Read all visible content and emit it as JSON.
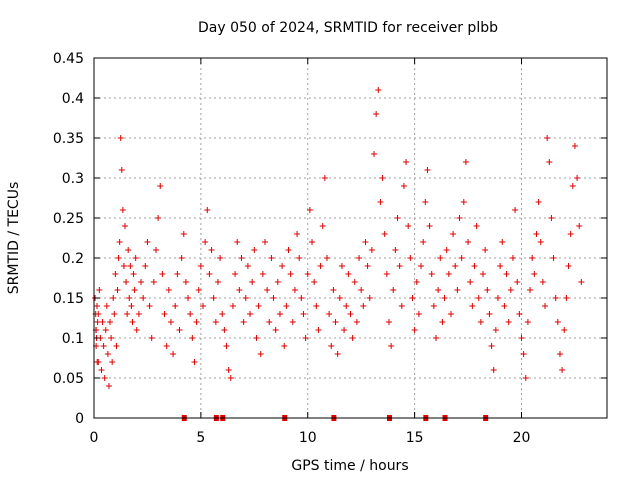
{
  "chart_data": {
    "type": "scatter",
    "title": "Day 050 of 2024, SRMTID for receiver plbb",
    "xlabel": "GPS time / hours",
    "ylabel": "SRMTID / TECUs",
    "xlim": [
      0,
      24
    ],
    "ylim": [
      0,
      0.45
    ],
    "x_ticks": [
      0,
      5,
      10,
      15,
      20
    ],
    "y_ticks": [
      0,
      0.05,
      0.1,
      0.15,
      0.2,
      0.25,
      0.3,
      0.35,
      0.4,
      0.45
    ],
    "x_tick_labels": [
      "0",
      "5",
      "10",
      "15",
      "20"
    ],
    "y_tick_labels": [
      "0",
      "0.05",
      "0.1",
      "0.15",
      "0.2",
      "0.25",
      "0.3",
      "0.35",
      "0.4",
      "0.45"
    ],
    "grid": true,
    "marker": "+",
    "color": "#dd0000",
    "series": [
      {
        "name": "SRMTID",
        "x": [
          0.05,
          0.1,
          0.15,
          0.2,
          0.25,
          0.3,
          0.35,
          0.4,
          0.45,
          0.5,
          0.55,
          0.6,
          0.65,
          0.7,
          0.75,
          0.8,
          0.85,
          0.9,
          0.95,
          1.0,
          1.05,
          1.1,
          1.15,
          1.2,
          1.25,
          1.3,
          1.35,
          1.4,
          1.45,
          1.5,
          1.55,
          1.6,
          1.65,
          1.7,
          1.75,
          1.8,
          1.85,
          1.9,
          1.95,
          2.0,
          2.1,
          2.2,
          2.3,
          2.4,
          2.5,
          2.6,
          2.7,
          2.8,
          2.9,
          3.0,
          3.1,
          3.2,
          3.3,
          3.4,
          3.5,
          3.6,
          3.7,
          3.8,
          3.9,
          4.0,
          4.1,
          4.2,
          4.3,
          4.4,
          4.5,
          4.6,
          4.7,
          4.8,
          4.9,
          5.0,
          5.1,
          5.2,
          5.3,
          5.4,
          5.5,
          5.6,
          5.7,
          5.8,
          5.9,
          6.0,
          6.1,
          6.2,
          6.3,
          6.4,
          6.5,
          6.6,
          6.7,
          6.8,
          6.9,
          7.0,
          7.1,
          7.2,
          7.3,
          7.4,
          7.5,
          7.6,
          7.7,
          7.8,
          7.9,
          8.0,
          8.1,
          8.2,
          8.3,
          8.4,
          8.5,
          8.6,
          8.7,
          8.8,
          8.9,
          9.0,
          9.1,
          9.2,
          9.3,
          9.4,
          9.5,
          9.6,
          9.7,
          9.8,
          9.9,
          10.0,
          10.1,
          10.2,
          10.3,
          10.4,
          10.5,
          10.6,
          10.7,
          10.8,
          10.9,
          11.0,
          11.1,
          11.2,
          11.3,
          11.4,
          11.5,
          11.6,
          11.7,
          11.8,
          11.9,
          12.0,
          12.1,
          12.2,
          12.3,
          12.4,
          12.5,
          12.6,
          12.7,
          12.8,
          12.9,
          13.0,
          13.1,
          13.2,
          13.3,
          13.4,
          13.5,
          13.6,
          13.7,
          13.8,
          13.9,
          14.0,
          14.1,
          14.2,
          14.3,
          14.4,
          14.5,
          14.6,
          14.7,
          14.8,
          14.9,
          15.0,
          15.1,
          15.2,
          15.3,
          15.4,
          15.5,
          15.6,
          15.7,
          15.8,
          15.9,
          16.0,
          16.1,
          16.2,
          16.3,
          16.4,
          16.5,
          16.6,
          16.7,
          16.8,
          16.9,
          17.0,
          17.1,
          17.2,
          17.3,
          17.4,
          17.5,
          17.6,
          17.7,
          17.8,
          17.9,
          18.0,
          18.1,
          18.2,
          18.3,
          18.4,
          18.5,
          18.6,
          18.7,
          18.8,
          18.9,
          19.0,
          19.1,
          19.2,
          19.3,
          19.4,
          19.5,
          19.6,
          19.7,
          19.8,
          19.9,
          20.0,
          20.1,
          20.2,
          20.3,
          20.4,
          20.5,
          20.6,
          20.7,
          20.8,
          20.9,
          21.0,
          21.1,
          21.2,
          21.3,
          21.4,
          21.5,
          21.6,
          21.7,
          21.8,
          21.9,
          22.0,
          22.1,
          22.2,
          22.3,
          22.4,
          22.5,
          22.6,
          22.7,
          22.8,
          0.08,
          0.12,
          0.2,
          0.1,
          0.17,
          0.14,
          0.09,
          0.15,
          0.11,
          0.07,
          0.13,
          0.16,
          0.1,
          0.06,
          0.12,
          0.09,
          0.05,
          0.11,
          0.14,
          0.08,
          0.04,
          0.12,
          0.1,
          0.07,
          0.15,
          0.13,
          0.18,
          0.09,
          0.16,
          0.2,
          0.22,
          0.35,
          0.31,
          0.26,
          0.19,
          0.24,
          0.17,
          0.13,
          0.21,
          0.15,
          0.19,
          0.14,
          0.12,
          0.18,
          0.16,
          0.2,
          0.11,
          0.13,
          0.17,
          0.15,
          0.19,
          0.22,
          0.14,
          0.1,
          0.17,
          0.21,
          0.25,
          0.29,
          0.18,
          0.13,
          0.09,
          0.16,
          0.12,
          0.08,
          0.14,
          0.18,
          0.11,
          0.2,
          0.23,
          0.17,
          0.15,
          0.13,
          0.1,
          0.07,
          0.12,
          0.16,
          0.19,
          0.14,
          0.22,
          0.26,
          0.18,
          0.21,
          0.15,
          0.12,
          0.17,
          0.2,
          0.13,
          0.11,
          0.09,
          0.06,
          0.05,
          0.14,
          0.18,
          0.22,
          0.16,
          0.2,
          0.12,
          0.15,
          0.19,
          0.13,
          0.17,
          0.21,
          0.1,
          0.14,
          0.08,
          0.18,
          0.22,
          0.16,
          0.12,
          0.2,
          0.15,
          0.11,
          0.17,
          0.13,
          0.19,
          0.09,
          0.14,
          0.21,
          0.18,
          0.12,
          0.16,
          0.23,
          0.2,
          0.15,
          0.13,
          0.1,
          0.18,
          0.26,
          0.22,
          0.17,
          0.14,
          0.11,
          0.19,
          0.24,
          0.3,
          0.2,
          0.13,
          0.09,
          0.16,
          0.12,
          0.08,
          0.15,
          0.19,
          0.11,
          0.14,
          0.18,
          0.13,
          0.1,
          0.17,
          0.12,
          0.2,
          0.16,
          0.14,
          0.22,
          0.19,
          0.15,
          0.21,
          0.33,
          0.38,
          0.41,
          0.27,
          0.3,
          0.23,
          0.18,
          0.12,
          0.09,
          0.16,
          0.21,
          0.25,
          0.19,
          0.14,
          0.29,
          0.32,
          0.24,
          0.2,
          0.15,
          0.11,
          0.17,
          0.13,
          0.19,
          0.22,
          0.27,
          0.31,
          0.24,
          0.18,
          0.14,
          0.1,
          0.16,
          0.2,
          0.12,
          0.15,
          0.21,
          0.18,
          0.13,
          0.23,
          0.19,
          0.16,
          0.25,
          0.2,
          0.27,
          0.32,
          0.22,
          0.17,
          0.14,
          0.19,
          0.24,
          0.15,
          0.12,
          0.18,
          0.21,
          0.16,
          0.13,
          0.09,
          0.06,
          0.11,
          0.15,
          0.19,
          0.22,
          0.14,
          0.18,
          0.12,
          0.16,
          0.2,
          0.26,
          0.17,
          0.13,
          0.1,
          0.08,
          0.05,
          0.12,
          0.16,
          0.2,
          0.18,
          0.23,
          0.27,
          0.22,
          0.17,
          0.14,
          0.35,
          0.32,
          0.25,
          0.2,
          0.15,
          0.12,
          0.08,
          0.06,
          0.11,
          0.15,
          0.19,
          0.23,
          0.29,
          0.34,
          0.3,
          0.24,
          0.17,
          0.13,
          0.1,
          0.07,
          0.09,
          0.12,
          0.14,
          0.11,
          0.09
        ]
      }
    ],
    "bottom_markers_x": [
      4.2,
      5.7,
      6.0,
      8.9,
      11.2,
      13.8,
      15.5,
      16.4,
      18.3
    ]
  }
}
